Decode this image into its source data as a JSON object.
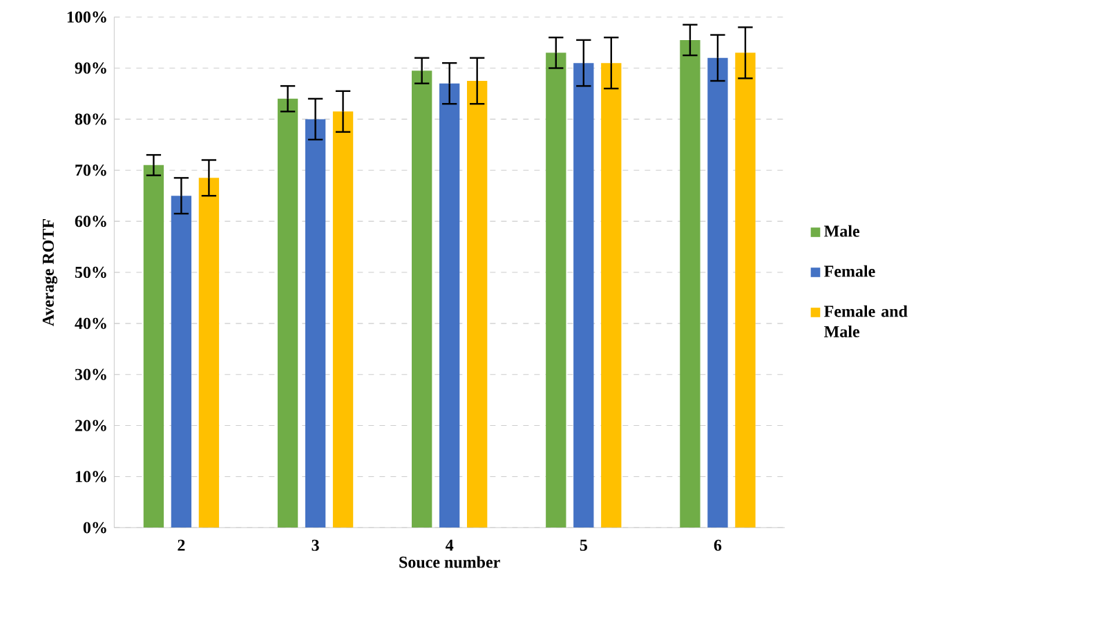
{
  "chart_data": {
    "type": "bar",
    "xlabel": "Souce number",
    "ylabel": "Average ROTF",
    "categories": [
      "2",
      "3",
      "4",
      "5",
      "6"
    ],
    "series": [
      {
        "name": "Male",
        "color": "#70ad47",
        "values": [
          71,
          84,
          89.5,
          93,
          95.5
        ],
        "errors": [
          2,
          2.5,
          2.5,
          3,
          3
        ]
      },
      {
        "name": "Female",
        "color": "#4472c4",
        "values": [
          65,
          80,
          87,
          91,
          92
        ],
        "errors": [
          3.5,
          4,
          4,
          4.5,
          4.5
        ]
      },
      {
        "name": "Female and Male",
        "color": "#ffc000",
        "values": [
          68.5,
          81.5,
          87.5,
          91,
          93
        ],
        "errors": [
          3.5,
          4,
          4.5,
          5,
          5
        ]
      }
    ],
    "ylim": [
      0,
      100
    ],
    "yticks": [
      {
        "value": 0,
        "label": "0%"
      },
      {
        "value": 10,
        "label": "10%"
      },
      {
        "value": 20,
        "label": "20%"
      },
      {
        "value": 30,
        "label": "30%"
      },
      {
        "value": 40,
        "label": "40%"
      },
      {
        "value": 50,
        "label": "50%"
      },
      {
        "value": 60,
        "label": "60%"
      },
      {
        "value": 70,
        "label": "70%"
      },
      {
        "value": 80,
        "label": "80%"
      },
      {
        "value": 90,
        "label": "90%"
      },
      {
        "value": 100,
        "label": "100%"
      }
    ],
    "grid": "y",
    "legend": "right"
  }
}
